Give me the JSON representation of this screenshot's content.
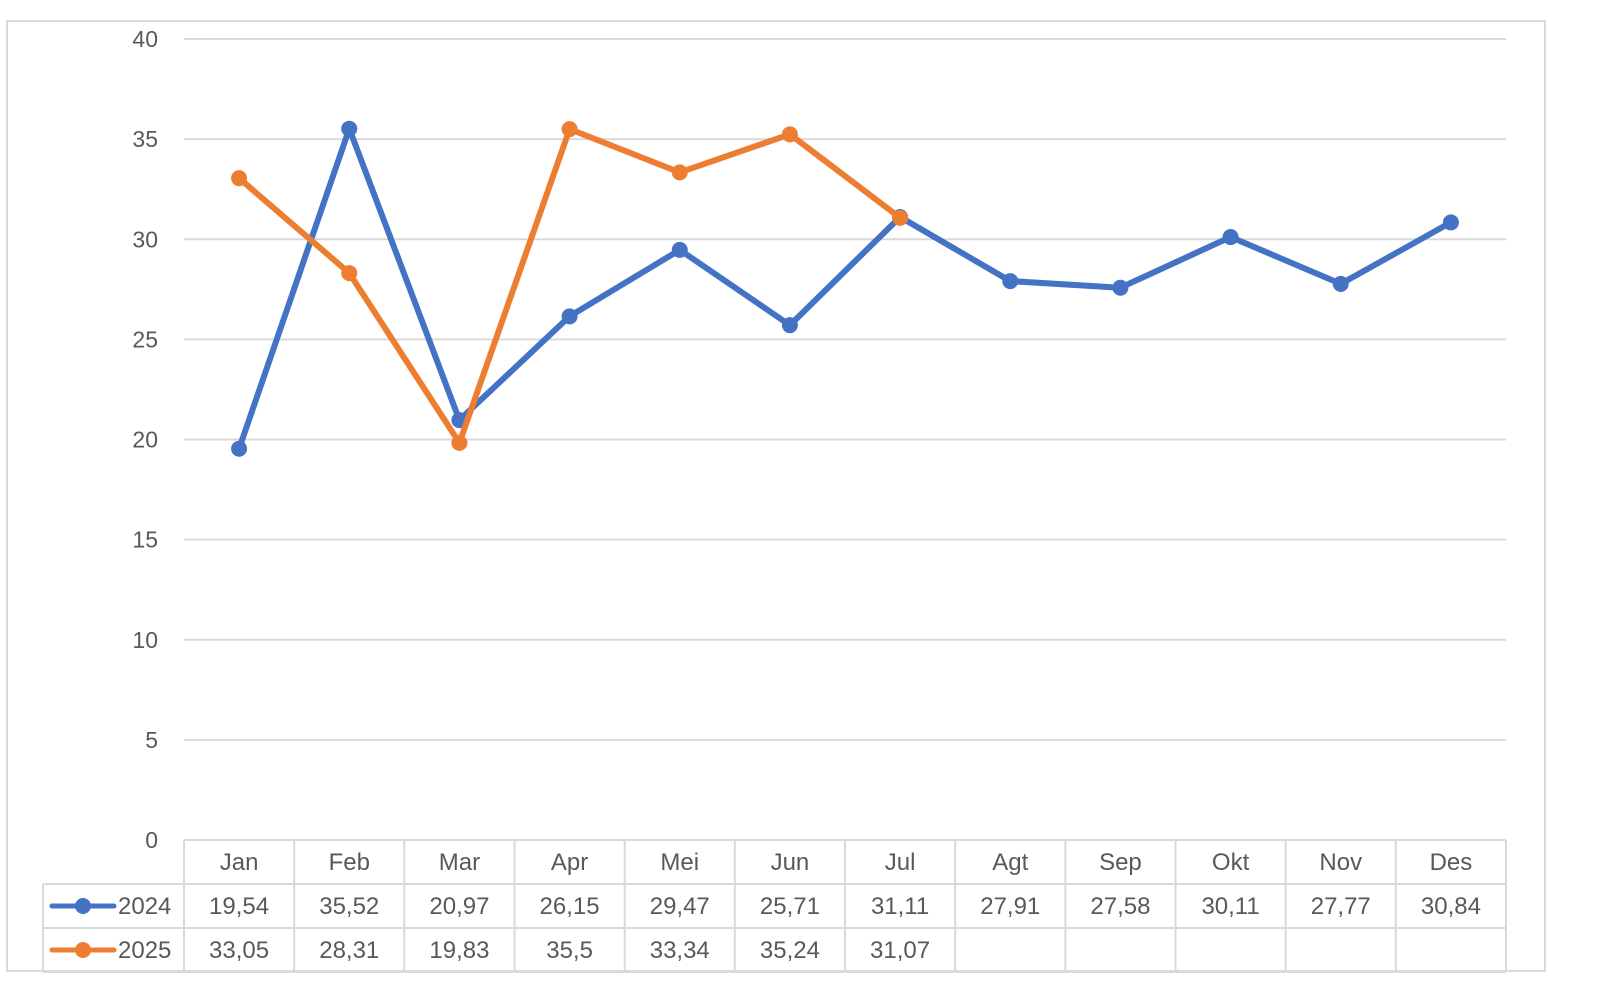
{
  "chart_data": {
    "type": "line",
    "title": "",
    "xlabel": "",
    "ylabel": "",
    "categories": [
      "Jan",
      "Feb",
      "Mar",
      "Apr",
      "Mei",
      "Jun",
      "Jul",
      "Agt",
      "Sep",
      "Okt",
      "Nov",
      "Des"
    ],
    "ylim": [
      0,
      40
    ],
    "yticks": [
      0,
      5,
      10,
      15,
      20,
      25,
      30,
      35,
      40
    ],
    "grid": true,
    "legend": "data-table",
    "series": [
      {
        "name": "2024",
        "color": "#4472c4",
        "values": [
          19.54,
          35.52,
          20.97,
          26.15,
          29.47,
          25.71,
          31.11,
          27.91,
          27.58,
          30.11,
          27.77,
          30.84
        ],
        "labels": [
          "19,54",
          "35,52",
          "20,97",
          "26,15",
          "29,47",
          "25,71",
          "31,11",
          "27,91",
          "27,58",
          "30,11",
          "27,77",
          "30,84"
        ]
      },
      {
        "name": "2025",
        "color": "#ed7d31",
        "values": [
          33.05,
          28.31,
          19.83,
          35.5,
          33.34,
          35.24,
          31.07,
          null,
          null,
          null,
          null,
          null
        ],
        "labels": [
          "33,05",
          "28,31",
          "19,83",
          "35,5",
          "33,34",
          "35,24",
          "31,07",
          "",
          "",
          "",
          "",
          ""
        ]
      }
    ]
  }
}
